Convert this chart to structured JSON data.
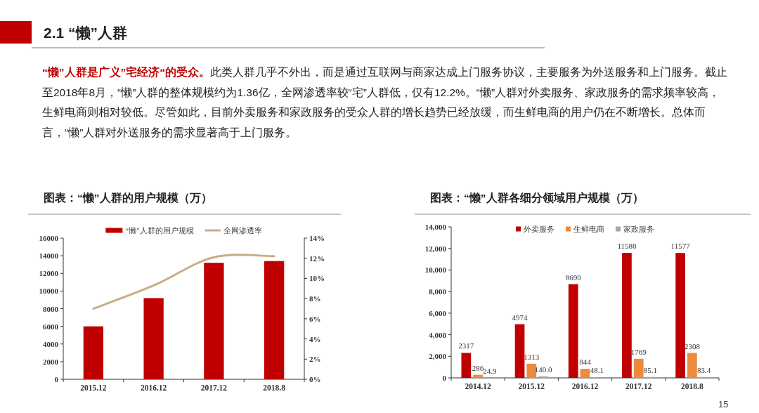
{
  "chart_data": [
    {
      "type": "other",
      "title": "2.1 “懒”人群",
      "annotations": [
        "“懒”人群是广义”宅经济“的受众。",
        "此类人群几乎不外出，而是通过互联网与商家达成上门服务协议，主要服务为外送服务和上门服务。截止至2018年8月，“懒”人群的整体规模约为1.36亿，全网渗透率较“宅”人群低，仅有12.2%。“懒”人群对外卖服务、家政服务的需求频率较高，生鲜电商则相对较低。尽管如此，目前外卖服务和家政服务的受众人群的增长趋势已经放缓，而生鲜电商的用户仍在不断增长。总体而言，“懒”人群对外送服务的需求显著高于上门服务。",
        "15"
      ]
    },
    {
      "type": "bar",
      "title": "图表：“懒”人群的用户规模（万）",
      "categories": [
        "2015.12",
        "2016.12",
        "2017.12",
        "2018.8"
      ],
      "series": [
        {
          "name": "“懒”人群的用户规模",
          "color": "#c00000",
          "values": [
            6000,
            9200,
            13200,
            13400
          ]
        },
        {
          "name": "全网渗透率",
          "color": "#c9ad82",
          "type": "line",
          "axis": "y2",
          "values": [
            7.0,
            9.3,
            12.1,
            12.2
          ]
        }
      ],
      "ylim": [
        0,
        16000
      ],
      "yticks": [
        0,
        2000,
        4000,
        6000,
        8000,
        10000,
        12000,
        14000,
        16000
      ],
      "y2lim": [
        0,
        14
      ],
      "y2ticks": [
        {
          "value": 0,
          "label": "0%"
        },
        {
          "value": 2,
          "label": "2%"
        },
        {
          "value": 4,
          "label": "4%"
        },
        {
          "value": 6,
          "label": "6%"
        },
        {
          "value": 8,
          "label": "8%"
        },
        {
          "value": 10,
          "label": "10%"
        },
        {
          "value": 12,
          "label": "12%"
        },
        {
          "value": 14,
          "label": "14%"
        }
      ],
      "legend": "top"
    },
    {
      "type": "bar",
      "title": "图表：“懒”人群各细分领域用户规模（万）",
      "categories": [
        "2014.12",
        "2015.12",
        "2016.12",
        "2017.12",
        "2018.8"
      ],
      "series": [
        {
          "name": "外卖服务",
          "color": "#c00000",
          "values": [
            2317,
            4974,
            8690,
            11588,
            11577
          ],
          "value_labels": [
            "2317",
            "4974",
            "8690",
            "11588",
            "11577"
          ]
        },
        {
          "name": "生鲜电商",
          "color": "#ed8a3c",
          "values": [
            286,
            1313,
            844,
            1769,
            2308
          ],
          "value_labels": [
            "286",
            "1313",
            "844",
            "1769",
            "2308"
          ]
        },
        {
          "name": "家政服务",
          "color": "#a6a6a6",
          "values": [
            24.9,
            140.0,
            48.1,
            85.1,
            83.4
          ],
          "value_labels": [
            "24.9",
            "140.0",
            "48.1",
            "85.1",
            "83.4"
          ]
        }
      ],
      "ylim": [
        0,
        14000
      ],
      "yticks": [
        {
          "value": 0,
          "label": "0"
        },
        {
          "value": 2000,
          "label": "2,000"
        },
        {
          "value": 4000,
          "label": "4,000"
        },
        {
          "value": 6000,
          "label": "6,000"
        },
        {
          "value": 8000,
          "label": "8,000"
        },
        {
          "value": 10000,
          "label": "10,000"
        },
        {
          "value": 12000,
          "label": "12,000"
        },
        {
          "value": 14000,
          "label": "14,000"
        }
      ],
      "legend": "top"
    }
  ]
}
